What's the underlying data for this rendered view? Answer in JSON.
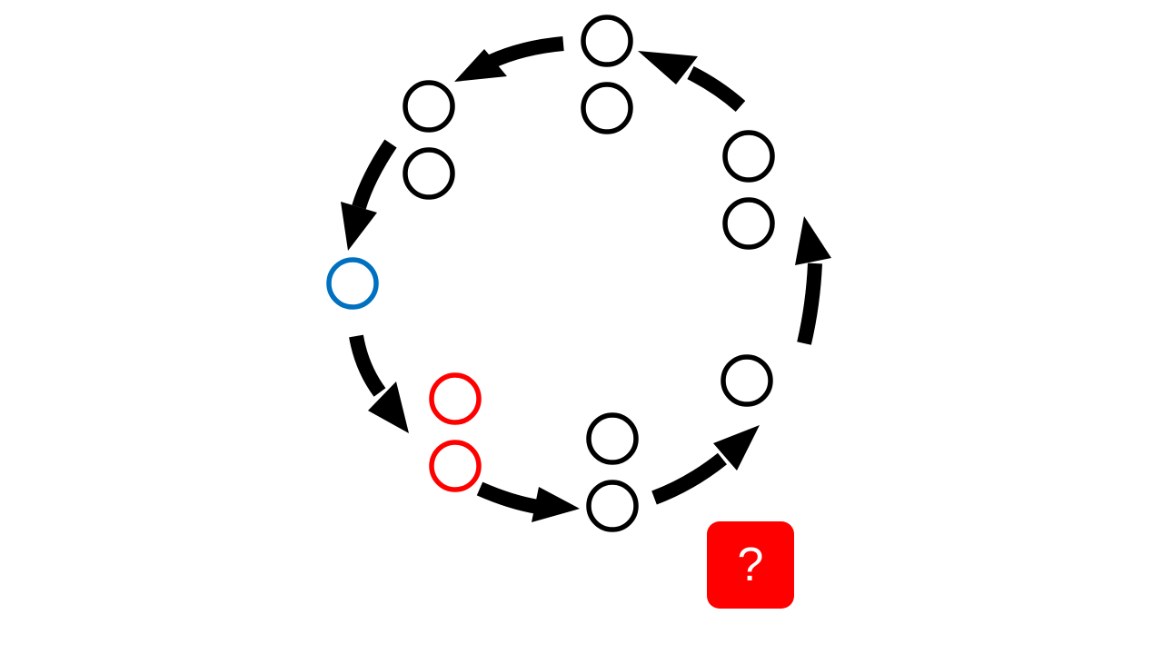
{
  "diagram": {
    "colors": {
      "default": "#000000",
      "highlight_blue": "#0070c0",
      "highlight_red": "#ff0000",
      "arrow": "#000000"
    },
    "groups": [
      {
        "id": "group-top",
        "count": 2,
        "color": "default"
      },
      {
        "id": "group-upper-right",
        "count": 2,
        "color": "default"
      },
      {
        "id": "group-right",
        "count": 1,
        "color": "default"
      },
      {
        "id": "group-bottom",
        "count": 2,
        "color": "default"
      },
      {
        "id": "group-lower-left",
        "count": 2,
        "color": "highlight_red"
      },
      {
        "id": "group-left",
        "count": 1,
        "color": "highlight_blue"
      },
      {
        "id": "group-upper-left",
        "count": 2,
        "color": "default"
      }
    ],
    "cycle_direction": "counterclockwise"
  },
  "help_button": {
    "label": "?",
    "color": "#ff0000",
    "icon": "question-mark-icon"
  }
}
